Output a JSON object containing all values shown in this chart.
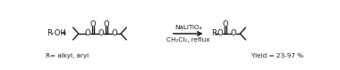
{
  "background_color": "#ffffff",
  "fig_width": 3.8,
  "fig_height": 0.79,
  "dpi": 100,
  "reactant1_text": "R-OH",
  "plus_text": "+",
  "reagent_line1": "NaLiTiO₄",
  "reagent_line2": "CH₂Cl₂, reflux",
  "r_label": "R= alkyl, aryl",
  "yield_label": "Yield = 23-97 %",
  "text_color": "#1a1a1a",
  "line_color": "#1a1a1a",
  "font_size_main": 6.0,
  "font_size_small": 5.2,
  "font_size_tiny": 4.8
}
